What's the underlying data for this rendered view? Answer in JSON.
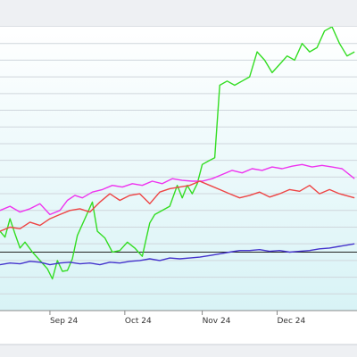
{
  "chart_data": {
    "type": "line",
    "x_ticks": [
      "Sep 24",
      "Oct 24",
      "Nov 24",
      "Dec 24"
    ],
    "x_tick_dates": [
      "2024-09-01",
      "2024-10-01",
      "2024-11-01",
      "2024-12-01"
    ],
    "x_range": [
      "2024-08-12",
      "2025-01-02"
    ],
    "y_range": [
      0,
      340
    ],
    "reference_line": 70,
    "grid": true,
    "legend": "none",
    "colors": {
      "plot_background_top": "#ffffff",
      "plot_background_bottom": "#d8f3f6",
      "grid": "#cfd6dc",
      "reference_line": "#222222"
    },
    "series": [
      {
        "color": "#33dd22",
        "points": [
          [
            "2024-08-12",
            95
          ],
          [
            "2024-08-14",
            88
          ],
          [
            "2024-08-16",
            110
          ],
          [
            "2024-08-18",
            92
          ],
          [
            "2024-08-20",
            75
          ],
          [
            "2024-08-22",
            82
          ],
          [
            "2024-08-25",
            70
          ],
          [
            "2024-08-28",
            60
          ],
          [
            "2024-08-31",
            50
          ],
          [
            "2024-09-02",
            38
          ],
          [
            "2024-09-04",
            60
          ],
          [
            "2024-09-06",
            47
          ],
          [
            "2024-09-08",
            48
          ],
          [
            "2024-09-10",
            62
          ],
          [
            "2024-09-12",
            90
          ],
          [
            "2024-09-15",
            110
          ],
          [
            "2024-09-18",
            130
          ],
          [
            "2024-09-20",
            95
          ],
          [
            "2024-09-23",
            87
          ],
          [
            "2024-09-26",
            70
          ],
          [
            "2024-09-29",
            72
          ],
          [
            "2024-10-02",
            82
          ],
          [
            "2024-10-05",
            75
          ],
          [
            "2024-10-08",
            65
          ],
          [
            "2024-10-11",
            105
          ],
          [
            "2024-10-13",
            115
          ],
          [
            "2024-10-16",
            120
          ],
          [
            "2024-10-19",
            125
          ],
          [
            "2024-10-22",
            150
          ],
          [
            "2024-10-24",
            135
          ],
          [
            "2024-10-26",
            150
          ],
          [
            "2024-10-28",
            140
          ],
          [
            "2024-10-30",
            152
          ],
          [
            "2024-11-01",
            175
          ],
          [
            "2024-11-04",
            180
          ],
          [
            "2024-11-06",
            183
          ],
          [
            "2024-11-08",
            270
          ],
          [
            "2024-11-11",
            275
          ],
          [
            "2024-11-14",
            270
          ],
          [
            "2024-11-17",
            275
          ],
          [
            "2024-11-20",
            280
          ],
          [
            "2024-11-23",
            310
          ],
          [
            "2024-11-26",
            300
          ],
          [
            "2024-11-29",
            285
          ],
          [
            "2024-12-02",
            295
          ],
          [
            "2024-12-05",
            305
          ],
          [
            "2024-12-08",
            300
          ],
          [
            "2024-12-11",
            320
          ],
          [
            "2024-12-14",
            310
          ],
          [
            "2024-12-17",
            315
          ],
          [
            "2024-12-20",
            335
          ],
          [
            "2024-12-23",
            340
          ],
          [
            "2024-12-26",
            320
          ],
          [
            "2024-12-29",
            305
          ],
          [
            "2025-01-01",
            310
          ]
        ]
      },
      {
        "color": "#ee33ee",
        "points": [
          [
            "2024-08-12",
            120
          ],
          [
            "2024-08-16",
            125
          ],
          [
            "2024-08-20",
            118
          ],
          [
            "2024-08-24",
            122
          ],
          [
            "2024-08-28",
            128
          ],
          [
            "2024-09-01",
            115
          ],
          [
            "2024-09-05",
            120
          ],
          [
            "2024-09-08",
            132
          ],
          [
            "2024-09-11",
            138
          ],
          [
            "2024-09-14",
            135
          ],
          [
            "2024-09-18",
            142
          ],
          [
            "2024-09-22",
            145
          ],
          [
            "2024-09-26",
            150
          ],
          [
            "2024-09-30",
            148
          ],
          [
            "2024-10-04",
            152
          ],
          [
            "2024-10-08",
            150
          ],
          [
            "2024-10-12",
            155
          ],
          [
            "2024-10-16",
            152
          ],
          [
            "2024-10-20",
            158
          ],
          [
            "2024-10-24",
            156
          ],
          [
            "2024-10-28",
            155
          ],
          [
            "2024-11-01",
            155
          ],
          [
            "2024-11-05",
            158
          ],
          [
            "2024-11-09",
            163
          ],
          [
            "2024-11-13",
            168
          ],
          [
            "2024-11-17",
            165
          ],
          [
            "2024-11-21",
            170
          ],
          [
            "2024-11-25",
            168
          ],
          [
            "2024-11-29",
            172
          ],
          [
            "2024-12-03",
            170
          ],
          [
            "2024-12-07",
            173
          ],
          [
            "2024-12-11",
            175
          ],
          [
            "2024-12-15",
            172
          ],
          [
            "2024-12-19",
            174
          ],
          [
            "2024-12-23",
            172
          ],
          [
            "2024-12-27",
            170
          ],
          [
            "2025-01-01",
            158
          ]
        ]
      },
      {
        "color": "#ee4444",
        "points": [
          [
            "2024-08-12",
            95
          ],
          [
            "2024-08-16",
            100
          ],
          [
            "2024-08-20",
            98
          ],
          [
            "2024-08-24",
            106
          ],
          [
            "2024-08-28",
            102
          ],
          [
            "2024-09-01",
            110
          ],
          [
            "2024-09-05",
            115
          ],
          [
            "2024-09-09",
            120
          ],
          [
            "2024-09-13",
            122
          ],
          [
            "2024-09-17",
            118
          ],
          [
            "2024-09-21",
            130
          ],
          [
            "2024-09-25",
            140
          ],
          [
            "2024-09-29",
            132
          ],
          [
            "2024-10-03",
            138
          ],
          [
            "2024-10-07",
            140
          ],
          [
            "2024-10-11",
            128
          ],
          [
            "2024-10-15",
            142
          ],
          [
            "2024-10-19",
            146
          ],
          [
            "2024-10-23",
            148
          ],
          [
            "2024-10-27",
            150
          ],
          [
            "2024-10-31",
            155
          ],
          [
            "2024-11-04",
            150
          ],
          [
            "2024-11-08",
            145
          ],
          [
            "2024-11-12",
            140
          ],
          [
            "2024-11-16",
            135
          ],
          [
            "2024-11-20",
            138
          ],
          [
            "2024-11-24",
            142
          ],
          [
            "2024-11-28",
            136
          ],
          [
            "2024-12-02",
            140
          ],
          [
            "2024-12-06",
            145
          ],
          [
            "2024-12-10",
            143
          ],
          [
            "2024-12-14",
            150
          ],
          [
            "2024-12-18",
            140
          ],
          [
            "2024-12-22",
            145
          ],
          [
            "2024-12-26",
            140
          ],
          [
            "2025-01-01",
            135
          ]
        ]
      },
      {
        "color": "#4433cc",
        "points": [
          [
            "2024-08-12",
            55
          ],
          [
            "2024-08-16",
            57
          ],
          [
            "2024-08-20",
            56
          ],
          [
            "2024-08-24",
            59
          ],
          [
            "2024-08-28",
            58
          ],
          [
            "2024-09-01",
            55
          ],
          [
            "2024-09-05",
            57
          ],
          [
            "2024-09-09",
            58
          ],
          [
            "2024-09-13",
            56
          ],
          [
            "2024-09-17",
            57
          ],
          [
            "2024-09-21",
            55
          ],
          [
            "2024-09-25",
            58
          ],
          [
            "2024-09-29",
            57
          ],
          [
            "2024-10-03",
            59
          ],
          [
            "2024-10-07",
            60
          ],
          [
            "2024-10-11",
            62
          ],
          [
            "2024-10-15",
            60
          ],
          [
            "2024-10-19",
            63
          ],
          [
            "2024-10-23",
            62
          ],
          [
            "2024-10-27",
            63
          ],
          [
            "2024-10-31",
            64
          ],
          [
            "2024-11-04",
            66
          ],
          [
            "2024-11-08",
            68
          ],
          [
            "2024-11-12",
            70
          ],
          [
            "2024-11-16",
            72
          ],
          [
            "2024-11-20",
            72
          ],
          [
            "2024-11-24",
            73
          ],
          [
            "2024-11-28",
            71
          ],
          [
            "2024-12-02",
            72
          ],
          [
            "2024-12-06",
            70
          ],
          [
            "2024-12-10",
            71
          ],
          [
            "2024-12-14",
            72
          ],
          [
            "2024-12-18",
            74
          ],
          [
            "2024-12-22",
            75
          ],
          [
            "2024-12-26",
            77
          ],
          [
            "2025-01-01",
            80
          ]
        ]
      }
    ]
  }
}
